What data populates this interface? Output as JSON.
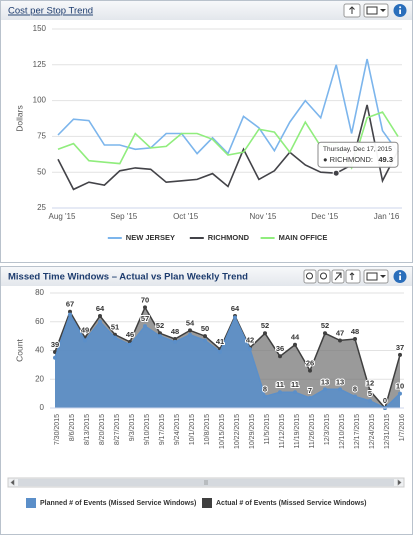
{
  "chart_data": [
    {
      "type": "line",
      "title": "Cost per Stop Trend",
      "y_label": "Dollars",
      "categories": [
        "Aug '15",
        null,
        null,
        null,
        "Sep '15",
        null,
        null,
        null,
        "Oct '15",
        null,
        null,
        null,
        null,
        "Nov '15",
        null,
        null,
        null,
        "Dec '15",
        null,
        null,
        null,
        "Jan '16",
        null
      ],
      "series": [
        {
          "name": "NEW JERSEY",
          "color": "#7cb5ec",
          "values": [
            76,
            87,
            86,
            69,
            69,
            66,
            67,
            77,
            77,
            63,
            74,
            63,
            89,
            81,
            65,
            85,
            100,
            88,
            125,
            77,
            129,
            79,
            64
          ]
        },
        {
          "name": "RICHMOND",
          "color": "#434348",
          "values": [
            59,
            38,
            43,
            41,
            51,
            53,
            52,
            43,
            44,
            45,
            49,
            40,
            66,
            45,
            51,
            64,
            55,
            50,
            49.3,
            55,
            97,
            44,
            65
          ]
        },
        {
          "name": "MAIN OFFICE",
          "color": "#90ed7d",
          "values": [
            66,
            70,
            58,
            57,
            56,
            77,
            67,
            68,
            77,
            77,
            73,
            62,
            64,
            80,
            78,
            64,
            85,
            68,
            70,
            53,
            88,
            92,
            75
          ]
        }
      ],
      "ylim": [
        25,
        150
      ],
      "yticks": [
        25,
        50,
        75,
        100,
        125,
        150
      ],
      "grid": true,
      "legend": "bottom",
      "tooltip": {
        "title": "Thursday, Dec 17, 2015",
        "label": "● RICHMOND:",
        "value": 49.3
      }
    },
    {
      "type": "area",
      "title": "Missed Time Windows – Actual vs Plan Weekly Trend",
      "y_label": "Count",
      "categories": [
        "7/30/2015",
        "8/6/2015",
        "8/13/2015",
        "8/20/2015",
        "8/27/2015",
        "9/3/2015",
        "9/10/2015",
        "9/17/2015",
        "9/24/2015",
        "10/1/2015",
        "10/8/2015",
        "10/15/2015",
        "10/22/2015",
        "10/29/2015",
        "11/5/2015",
        "11/12/2015",
        "11/19/2015",
        "11/26/2015",
        "12/3/2015",
        "12/10/2015",
        "12/17/2015",
        "12/24/2015",
        "12/31/2015",
        "1/7/2016"
      ],
      "series": [
        {
          "name": "Planned # of Events (Missed Service Windows)",
          "color": "#5b8fc9",
          "values": [
            35,
            65,
            47,
            60,
            49,
            44,
            57,
            50,
            46,
            51,
            47,
            39,
            63,
            41,
            8,
            11,
            11,
            7,
            13,
            13,
            8,
            5,
            0,
            10
          ]
        },
        {
          "name": "Actual # of Events (Missed Service Windows)",
          "color": "#3f3f3f",
          "values": [
            39,
            67,
            49,
            64,
            51,
            46,
            70,
            52,
            48,
            54,
            50,
            41,
            64,
            42,
            52,
            36,
            44,
            26,
            52,
            47,
            48,
            12,
            0,
            37
          ]
        }
      ],
      "ylim": [
        0,
        80
      ],
      "yticks": [
        0,
        20,
        40,
        60,
        80
      ],
      "grid": true,
      "legend": "bottom",
      "data_labels": true
    }
  ]
}
